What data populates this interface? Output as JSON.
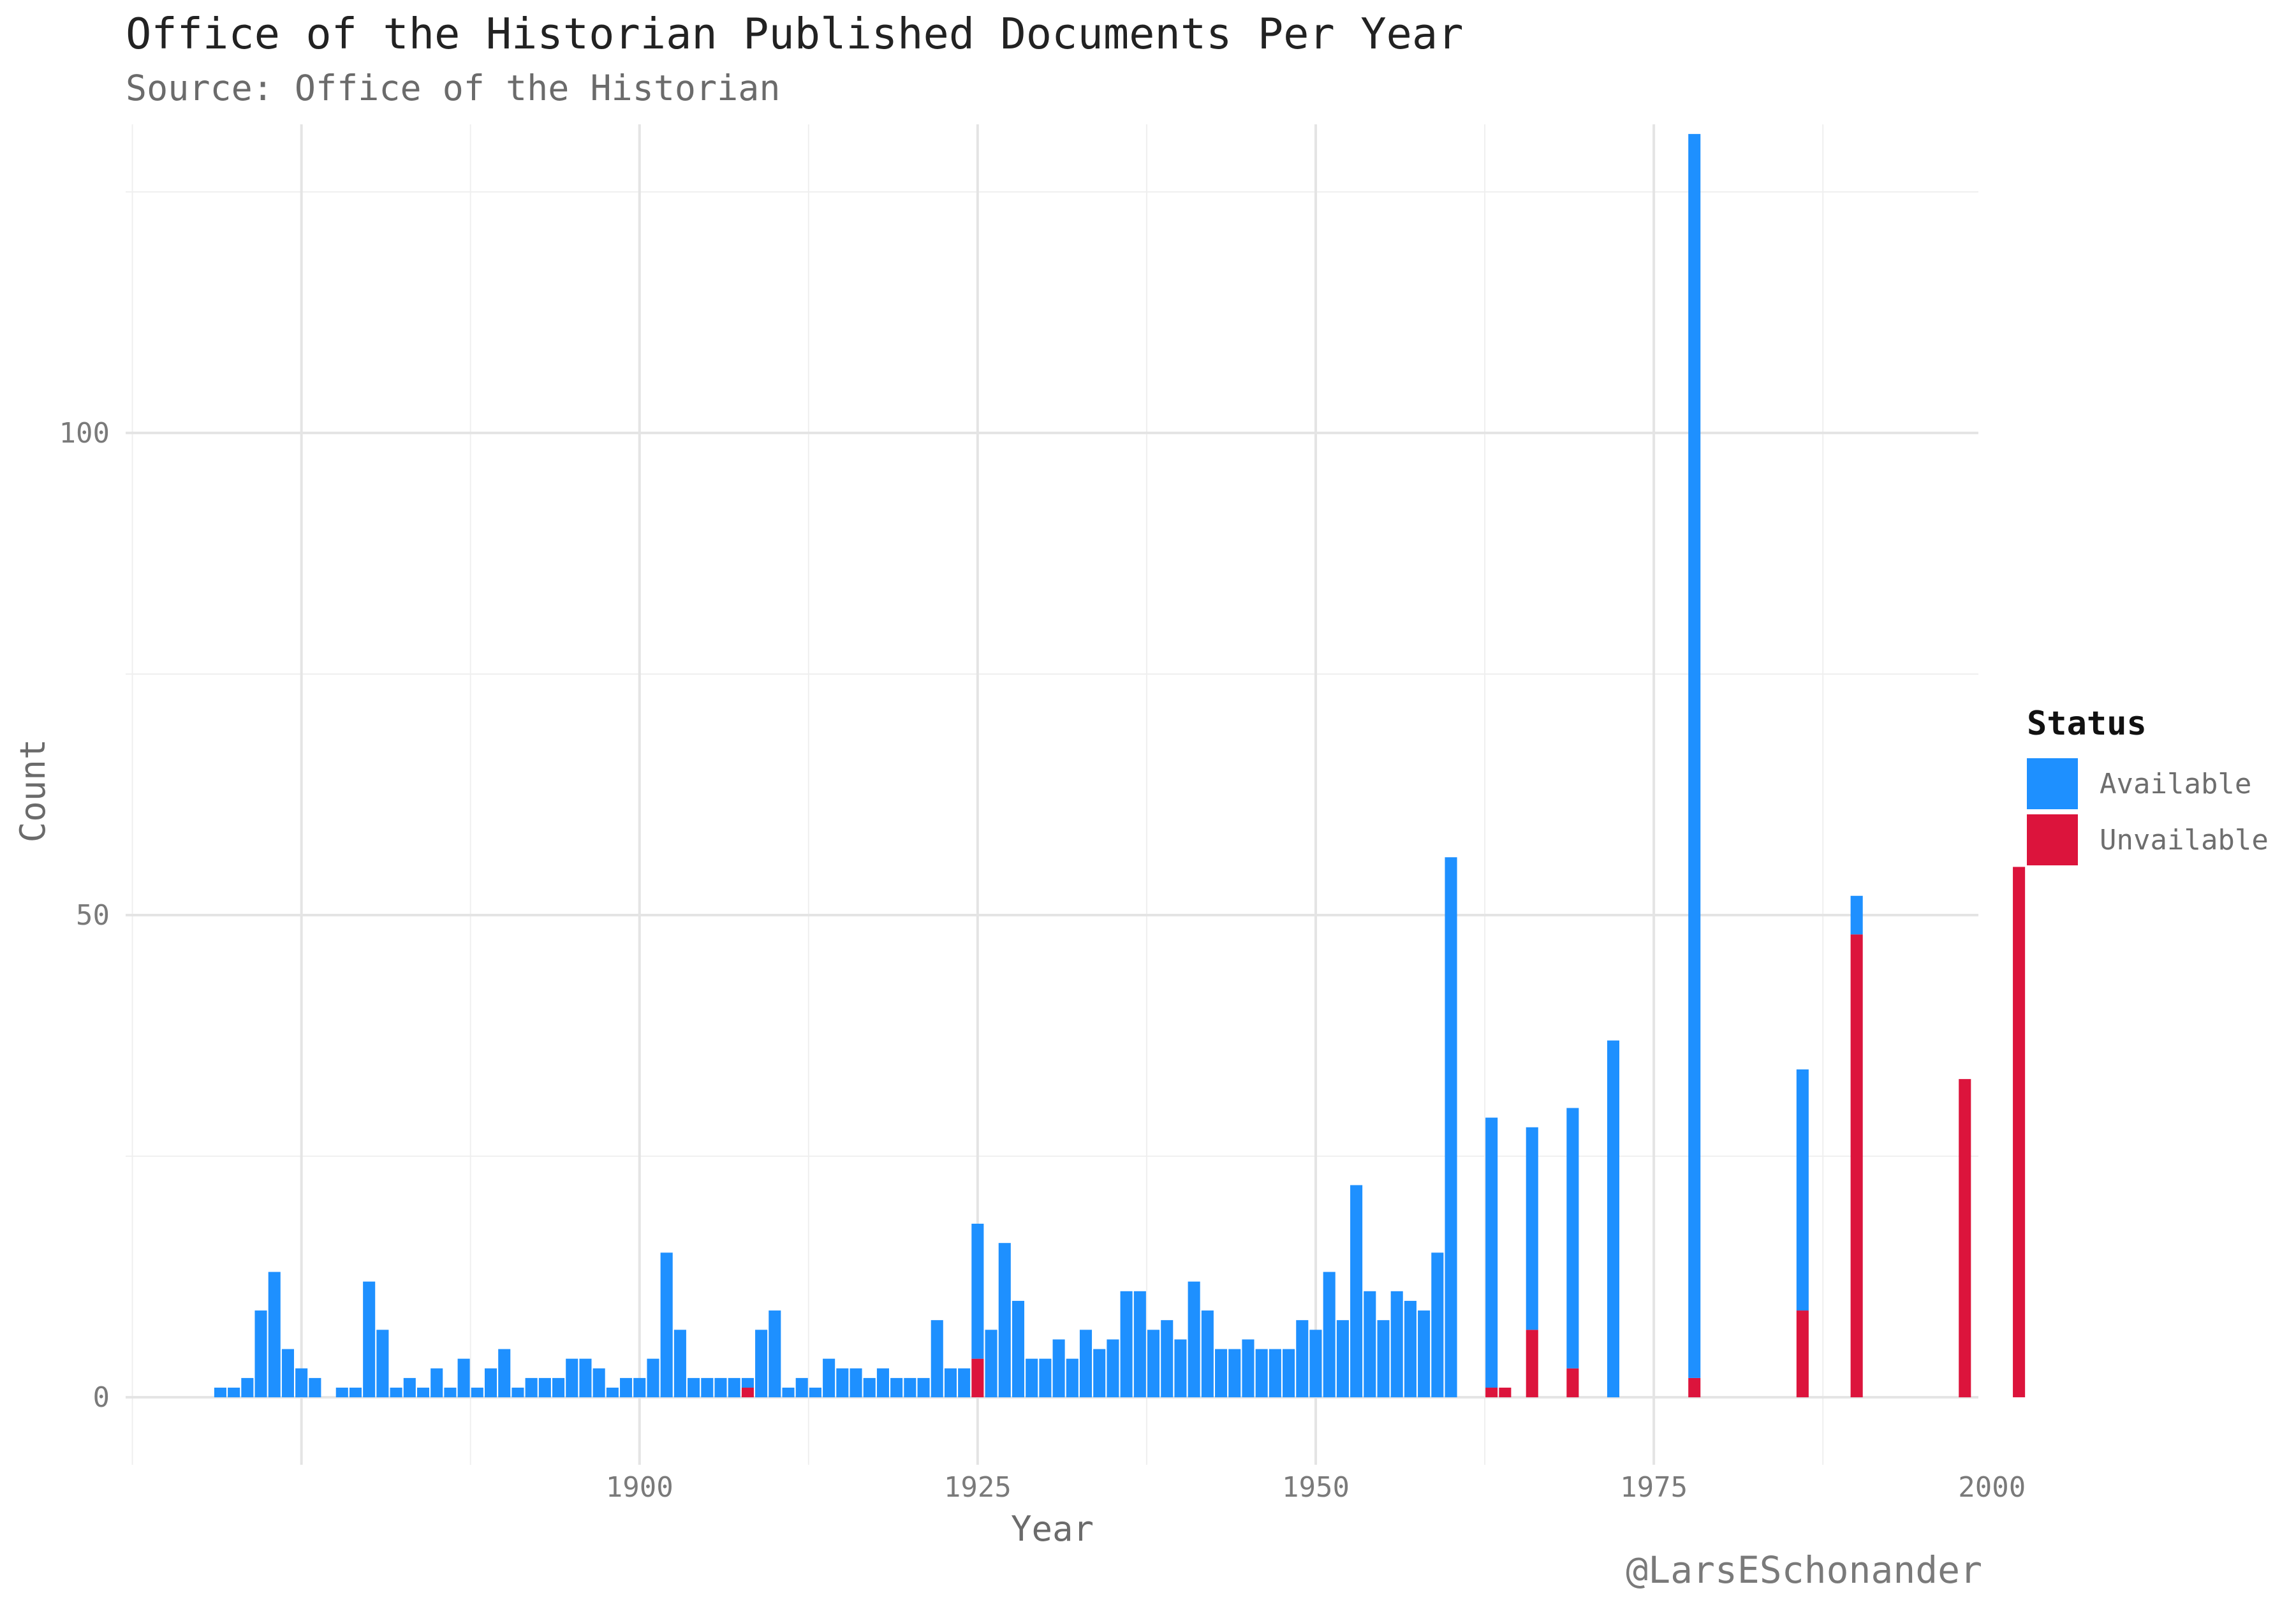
{
  "title": "Office of the Historian Published Documents Per Year",
  "subtitle": "Source: Office of the Historian",
  "caption": "@LarsESchonander",
  "colors": {
    "available": "#1E90FF",
    "unavailable": "#DC143C"
  },
  "legend": {
    "title": "Status",
    "items": [
      {
        "label": "Available",
        "color": "#1E90FF"
      },
      {
        "label": "Unvailable",
        "color": "#DC143C"
      }
    ]
  },
  "chart_data": {
    "type": "bar",
    "stacked": true,
    "xlabel": "Year",
    "ylabel": "Count",
    "xlim": [
      1862,
      1999
    ],
    "ylim": [
      -7,
      132
    ],
    "x_ticks": [
      1900,
      1925,
      1950,
      1975,
      2000
    ],
    "y_ticks": [
      0,
      50,
      100
    ],
    "grid": true,
    "legend_position": "right",
    "series": [
      {
        "name": "Available",
        "points": [
          [
            1869,
            1
          ],
          [
            1870,
            1
          ],
          [
            1871,
            2
          ],
          [
            1872,
            9
          ],
          [
            1873,
            13
          ],
          [
            1874,
            5
          ],
          [
            1875,
            3
          ],
          [
            1876,
            2
          ],
          [
            1878,
            1
          ],
          [
            1879,
            1
          ],
          [
            1880,
            12
          ],
          [
            1881,
            7
          ],
          [
            1882,
            1
          ],
          [
            1883,
            2
          ],
          [
            1884,
            1
          ],
          [
            1885,
            3
          ],
          [
            1886,
            1
          ],
          [
            1887,
            4
          ],
          [
            1888,
            1
          ],
          [
            1889,
            3
          ],
          [
            1890,
            5
          ],
          [
            1891,
            1
          ],
          [
            1892,
            2
          ],
          [
            1893,
            2
          ],
          [
            1894,
            2
          ],
          [
            1895,
            4
          ],
          [
            1896,
            4
          ],
          [
            1897,
            3
          ],
          [
            1898,
            1
          ],
          [
            1899,
            2
          ],
          [
            1900,
            2
          ],
          [
            1901,
            4
          ],
          [
            1902,
            15
          ],
          [
            1903,
            7
          ],
          [
            1904,
            2
          ],
          [
            1905,
            2
          ],
          [
            1906,
            2
          ],
          [
            1907,
            2
          ],
          [
            1908,
            1
          ],
          [
            1909,
            7
          ],
          [
            1910,
            9
          ],
          [
            1911,
            1
          ],
          [
            1912,
            2
          ],
          [
            1913,
            1
          ],
          [
            1914,
            4
          ],
          [
            1915,
            3
          ],
          [
            1916,
            3
          ],
          [
            1917,
            2
          ],
          [
            1918,
            3
          ],
          [
            1919,
            2
          ],
          [
            1920,
            2
          ],
          [
            1921,
            2
          ],
          [
            1922,
            8
          ],
          [
            1923,
            3
          ],
          [
            1924,
            3
          ],
          [
            1925,
            14
          ],
          [
            1926,
            7
          ],
          [
            1927,
            16
          ],
          [
            1928,
            10
          ],
          [
            1929,
            4
          ],
          [
            1930,
            4
          ],
          [
            1931,
            6
          ],
          [
            1932,
            4
          ],
          [
            1933,
            7
          ],
          [
            1934,
            5
          ],
          [
            1935,
            6
          ],
          [
            1936,
            11
          ],
          [
            1937,
            11
          ],
          [
            1938,
            7
          ],
          [
            1939,
            8
          ],
          [
            1940,
            6
          ],
          [
            1941,
            12
          ],
          [
            1942,
            9
          ],
          [
            1943,
            5
          ],
          [
            1944,
            5
          ],
          [
            1945,
            6
          ],
          [
            1946,
            5
          ],
          [
            1947,
            5
          ],
          [
            1948,
            5
          ],
          [
            1949,
            8
          ],
          [
            1950,
            7
          ],
          [
            1951,
            13
          ],
          [
            1952,
            8
          ],
          [
            1953,
            22
          ],
          [
            1954,
            11
          ],
          [
            1955,
            8
          ],
          [
            1956,
            11
          ],
          [
            1957,
            10
          ],
          [
            1958,
            9
          ],
          [
            1959,
            15
          ],
          [
            1960,
            56
          ],
          [
            1963,
            28
          ],
          [
            1964,
            0
          ],
          [
            1966,
            21
          ],
          [
            1969,
            27
          ],
          [
            1972,
            37
          ],
          [
            1978,
            129
          ],
          [
            1986,
            25
          ],
          [
            1990,
            4
          ]
        ]
      },
      {
        "name": "Unvailable",
        "points": [
          [
            1908,
            1
          ],
          [
            1925,
            4
          ],
          [
            1963,
            1
          ],
          [
            1964,
            1
          ],
          [
            1966,
            7
          ],
          [
            1969,
            3
          ],
          [
            1978,
            2
          ],
          [
            1986,
            9
          ],
          [
            1990,
            48
          ],
          [
            1998,
            33
          ],
          [
            2002,
            55
          ]
        ]
      }
    ]
  }
}
